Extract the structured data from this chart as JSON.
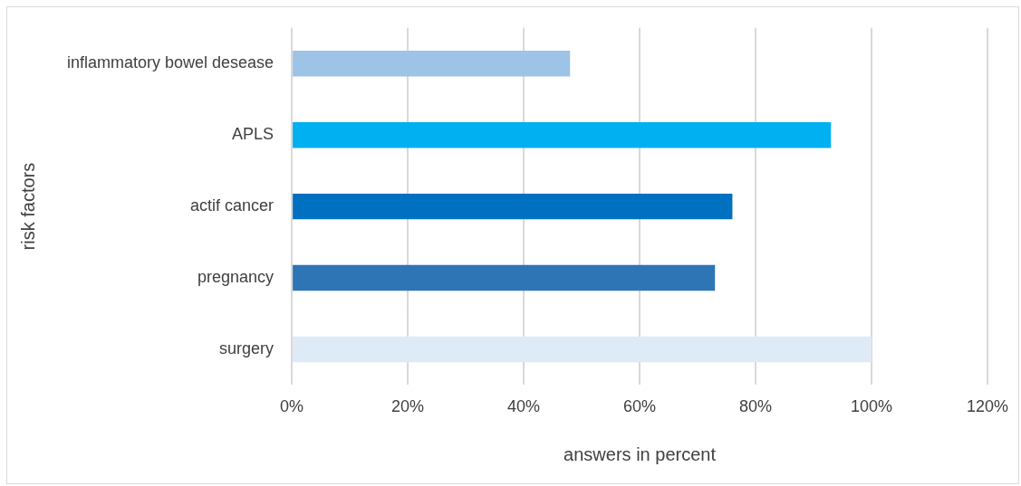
{
  "chart_data": {
    "type": "bar",
    "orientation": "horizontal",
    "xlabel": "answers in percent",
    "ylabel": "risk factors",
    "categories": [
      "inflammatory bowel desease",
      "APLS",
      "actif cancer",
      "pregnancy",
      "surgery"
    ],
    "values": [
      48,
      93,
      76,
      73,
      100
    ],
    "colors": [
      "#9dc3e6",
      "#00b0f0",
      "#0070c0",
      "#2e75b6",
      "#deeaf6"
    ],
    "xlim": [
      0,
      120
    ],
    "xticks": [
      {
        "value": 0,
        "label": "0%"
      },
      {
        "value": 20,
        "label": "20%"
      },
      {
        "value": 40,
        "label": "40%"
      },
      {
        "value": 60,
        "label": "60%"
      },
      {
        "value": 80,
        "label": "80%"
      },
      {
        "value": 100,
        "label": "100%"
      },
      {
        "value": 120,
        "label": "120%"
      }
    ],
    "grid": "x",
    "legend": false
  }
}
